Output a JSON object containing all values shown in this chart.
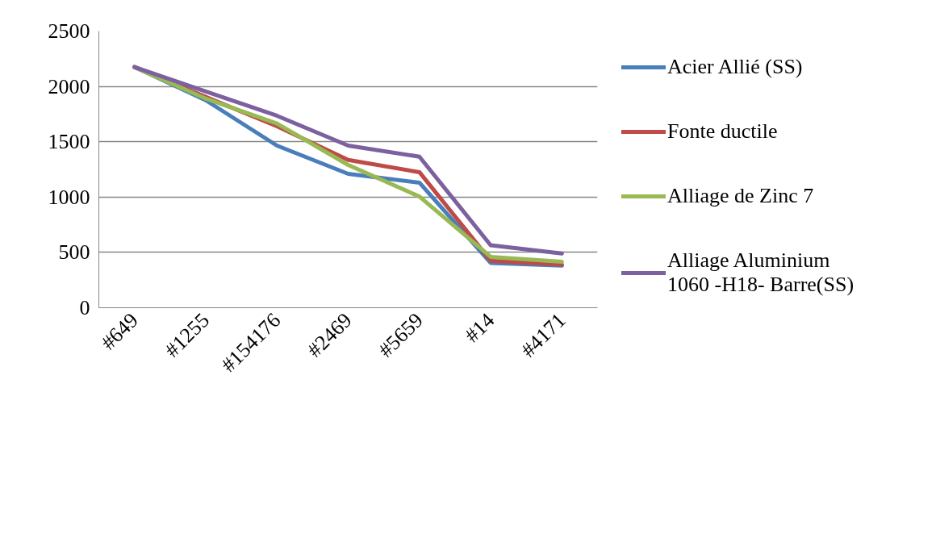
{
  "chart_data": {
    "type": "line",
    "categories": [
      "#649",
      "#1255",
      "#154176",
      "#2469",
      "#5659",
      "#14",
      "#4171"
    ],
    "ylim": [
      0,
      2500
    ],
    "yticks": [
      0,
      500,
      1000,
      1500,
      2000,
      2500
    ],
    "grid": "y",
    "legend": "right",
    "marker": "none",
    "line_style": "solid",
    "series": [
      {
        "name": "Acier Allié (SS)",
        "color": "#4a7ebb",
        "values": [
          2175,
          1875,
          1465,
          1210,
          1130,
          405,
          380
        ]
      },
      {
        "name": "Fonte ductile",
        "color": "#be4b48",
        "values": [
          2175,
          1905,
          1640,
          1335,
          1225,
          425,
          390
        ]
      },
      {
        "name": "Alliage de Zinc 7",
        "color": "#98b954",
        "values": [
          2175,
          1890,
          1665,
          1290,
          1005,
          460,
          415
        ]
      },
      {
        "name": "Alliage Aluminium 1060 -H18- Barre(SS)",
        "color": "#7d60a0",
        "values": [
          2175,
          1955,
          1735,
          1465,
          1365,
          565,
          490
        ]
      }
    ]
  }
}
